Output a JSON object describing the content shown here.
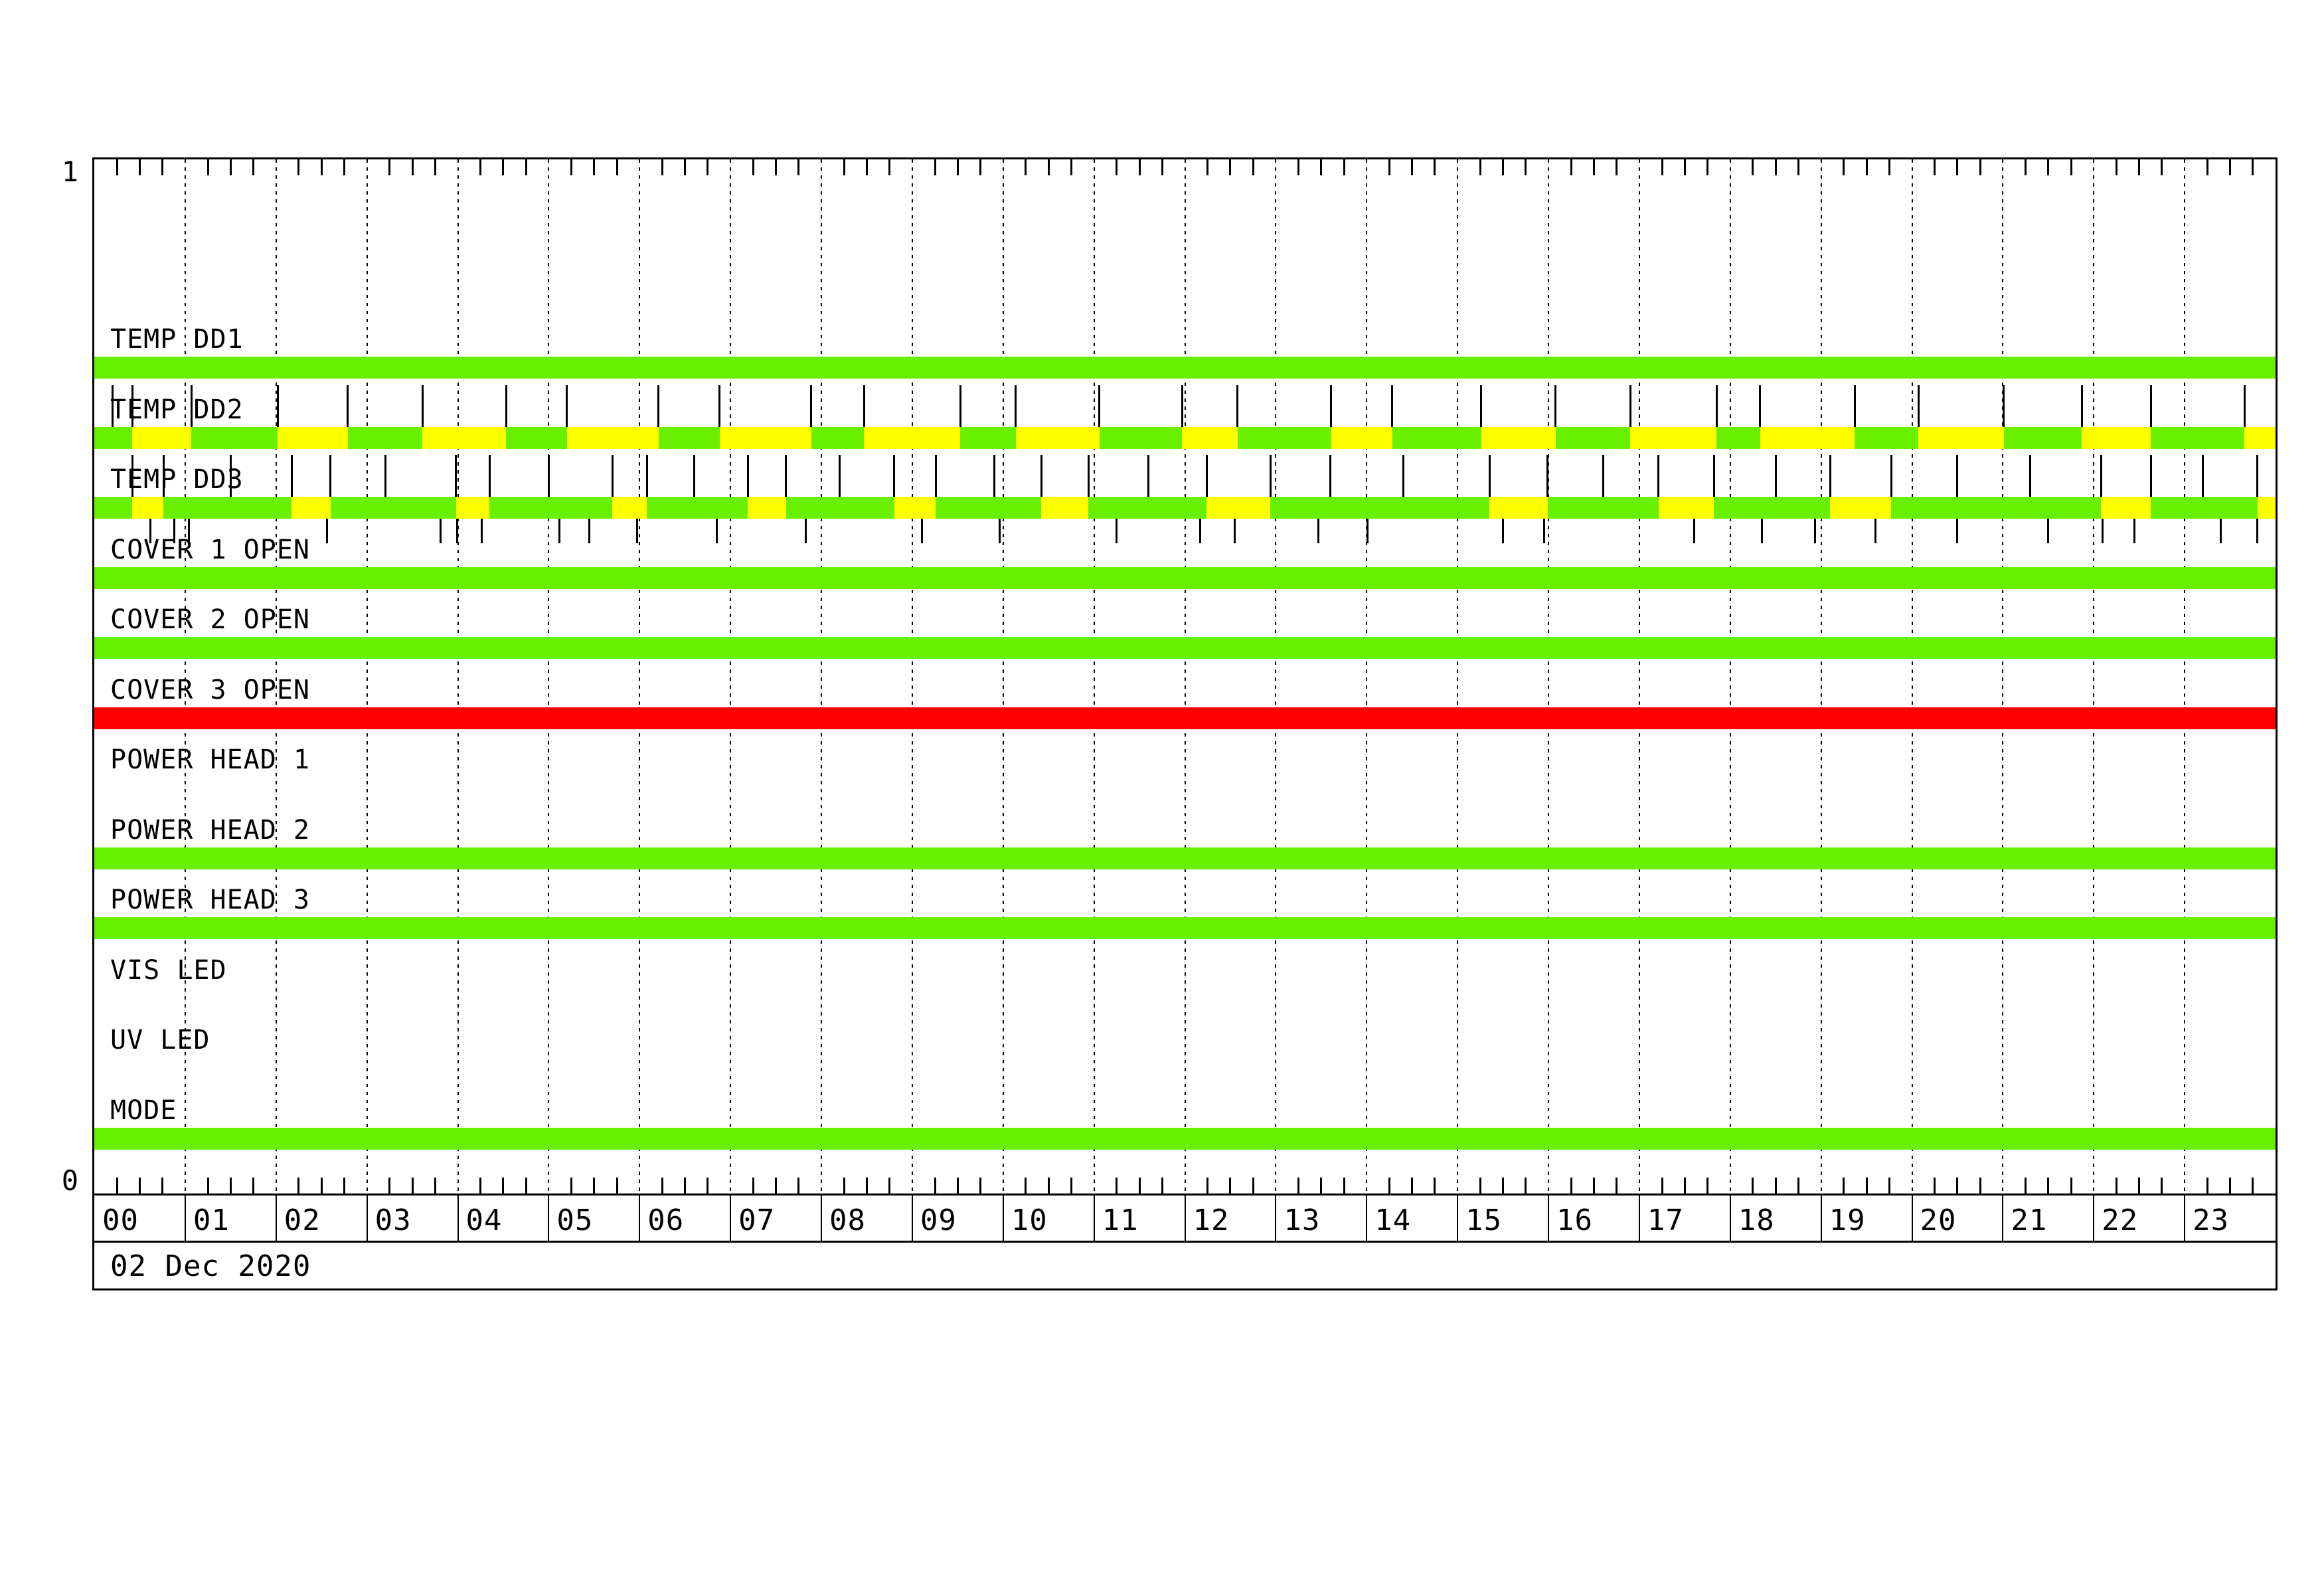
{
  "chart_data": {
    "type": "state-timeline",
    "date": "02 Dec 2020",
    "y_axis": {
      "top_label": "1",
      "bottom_label": "0"
    },
    "x_axis": {
      "unit": "hours",
      "start": 0,
      "end": 24,
      "minor_tick_minutes": 15,
      "gridline_every_hours": 1,
      "hour_labels": [
        "00",
        "01",
        "02",
        "03",
        "04",
        "05",
        "06",
        "07",
        "08",
        "09",
        "10",
        "11",
        "12",
        "13",
        "14",
        "15",
        "16",
        "17",
        "18",
        "19",
        "20",
        "21",
        "22",
        "23"
      ]
    },
    "colors": {
      "green": "#69F000",
      "yellow": "#FFFF00",
      "red": "#FF0000"
    },
    "rows": [
      {
        "label": "TEMP DD1",
        "bar": "solid",
        "color": "green"
      },
      {
        "label": "TEMP DD2",
        "bar": "segments",
        "segments": [
          [
            0,
            0.42,
            "green"
          ],
          [
            0.42,
            1.07,
            "yellow"
          ],
          [
            1.07,
            2.02,
            "green"
          ],
          [
            2.02,
            2.79,
            "yellow"
          ],
          [
            2.79,
            3.61,
            "green"
          ],
          [
            3.61,
            4.53,
            "yellow"
          ],
          [
            4.53,
            5.2,
            "green"
          ],
          [
            5.2,
            6.21,
            "yellow"
          ],
          [
            6.21,
            6.88,
            "green"
          ],
          [
            6.88,
            7.89,
            "yellow"
          ],
          [
            7.89,
            8.47,
            "green"
          ],
          [
            8.47,
            9.53,
            "yellow"
          ],
          [
            9.53,
            10.14,
            "green"
          ],
          [
            10.14,
            11.06,
            "yellow"
          ],
          [
            11.06,
            11.97,
            "green"
          ],
          [
            11.97,
            12.58,
            "yellow"
          ],
          [
            12.58,
            13.61,
            "green"
          ],
          [
            13.61,
            14.28,
            "yellow"
          ],
          [
            14.28,
            15.26,
            "green"
          ],
          [
            15.26,
            16.08,
            "yellow"
          ],
          [
            16.08,
            16.9,
            "green"
          ],
          [
            16.9,
            17.85,
            "yellow"
          ],
          [
            17.85,
            18.33,
            "green"
          ],
          [
            18.33,
            19.37,
            "yellow"
          ],
          [
            19.37,
            20.07,
            "green"
          ],
          [
            20.07,
            21.01,
            "yellow"
          ],
          [
            21.01,
            21.87,
            "green"
          ],
          [
            21.87,
            22.63,
            "yellow"
          ],
          [
            22.63,
            23.66,
            "green"
          ],
          [
            23.66,
            24,
            "yellow"
          ]
        ],
        "spikes": [
          0.2,
          0.42,
          1.07,
          2.02,
          2.79,
          3.61,
          4.53,
          5.2,
          6.21,
          6.88,
          7.89,
          8.47,
          9.53,
          10.14,
          11.06,
          11.97,
          12.58,
          13.61,
          14.28,
          15.26,
          16.08,
          16.9,
          17.85,
          18.33,
          19.37,
          20.07,
          21.01,
          21.87,
          22.63,
          23.66
        ]
      },
      {
        "label": "TEMP DD3",
        "bar": "base+bursts",
        "base_color": "green",
        "yellow_intervals": [
          [
            0.42,
            0.76
          ],
          [
            2.17,
            2.6
          ],
          [
            3.98,
            4.35
          ],
          [
            5.7,
            6.08
          ],
          [
            7.19,
            7.61
          ],
          [
            8.8,
            9.26
          ],
          [
            10.42,
            10.94
          ],
          [
            12.24,
            12.94
          ],
          [
            15.35,
            15.99
          ],
          [
            17.21,
            17.82
          ],
          [
            19.1,
            19.77
          ],
          [
            22.08,
            22.63
          ],
          [
            23.8,
            24
          ]
        ],
        "spikes": [
          0.42,
          0.76,
          1.5,
          2.17,
          2.6,
          3.2,
          3.98,
          4.35,
          5.0,
          5.7,
          6.08,
          6.6,
          7.19,
          7.61,
          8.2,
          8.8,
          9.26,
          9.9,
          10.42,
          10.94,
          11.6,
          12.24,
          12.94,
          13.6,
          14.4,
          15.35,
          15.99,
          16.6,
          17.21,
          17.82,
          18.5,
          19.1,
          19.77,
          20.5,
          21.3,
          22.08,
          22.63,
          23.2,
          23.8
        ]
      },
      {
        "label": "COVER 1 OPEN",
        "bar": "solid",
        "color": "green",
        "event_ticks": [
          0.62,
          0.88,
          1.04,
          2.56,
          3.81,
          3.99,
          4.26,
          5.12,
          5.45,
          5.97,
          6.85,
          7.83,
          9.11,
          9.96,
          11.25,
          12.17,
          12.55,
          13.47,
          14.01,
          15.5,
          15.95,
          17.6,
          18.35,
          18.93,
          19.6,
          20.5,
          21.5,
          22.1,
          22.45,
          23.4,
          23.8
        ]
      },
      {
        "label": "COVER 2 OPEN",
        "bar": "solid",
        "color": "green"
      },
      {
        "label": "COVER 3 OPEN",
        "bar": "solid",
        "color": "red"
      },
      {
        "label": "POWER HEAD 1",
        "bar": "none"
      },
      {
        "label": "POWER HEAD 2",
        "bar": "solid",
        "color": "green"
      },
      {
        "label": "POWER HEAD 3",
        "bar": "solid",
        "color": "green"
      },
      {
        "label": "VIS LED",
        "bar": "none"
      },
      {
        "label": "UV LED",
        "bar": "none"
      },
      {
        "label": "MODE",
        "bar": "solid",
        "color": "green"
      }
    ]
  }
}
